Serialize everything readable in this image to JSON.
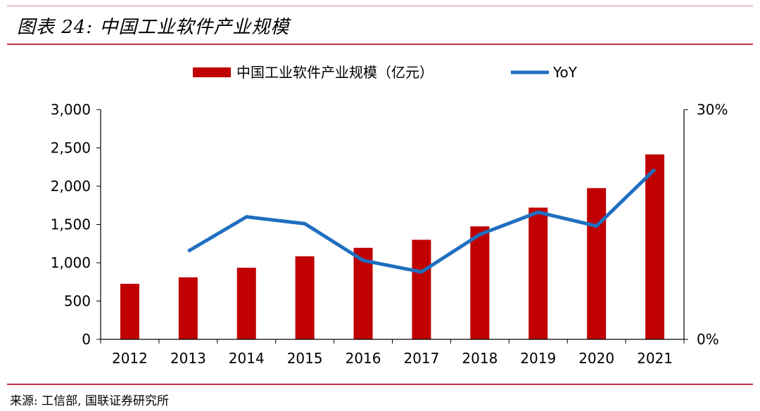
{
  "title": "图表 24:  中国工业软件产业规模",
  "source": "来源:  工信部, 国联证券研究所",
  "colors": {
    "bar": "#c00000",
    "line": "#1f6fc0",
    "rule": "#c0304a"
  },
  "chart_data": {
    "type": "bar+line",
    "categories": [
      "2012",
      "2013",
      "2014",
      "2015",
      "2016",
      "2017",
      "2018",
      "2019",
      "2020",
      "2021"
    ],
    "series": [
      {
        "name": "中国工业软件产业规模（亿元）",
        "type": "bar",
        "axis": "left",
        "values": [
          725,
          810,
          935,
          1085,
          1195,
          1300,
          1475,
          1720,
          1975,
          2415
        ]
      },
      {
        "name": "YoY",
        "type": "line",
        "axis": "right",
        "values": [
          null,
          11.5,
          16,
          15.1,
          10.3,
          8.8,
          13.7,
          16.6,
          14.8,
          22.2
        ]
      }
    ],
    "left_axis": {
      "min": 0,
      "max": 3000,
      "ticks": [
        "0",
        "500",
        "1,000",
        "1,500",
        "2,000",
        "2,500",
        "3,000"
      ]
    },
    "right_axis": {
      "min": 0,
      "max": 30,
      "ticks": [
        "0%",
        "30%"
      ]
    },
    "legend_position": "top-center",
    "grid": false
  }
}
